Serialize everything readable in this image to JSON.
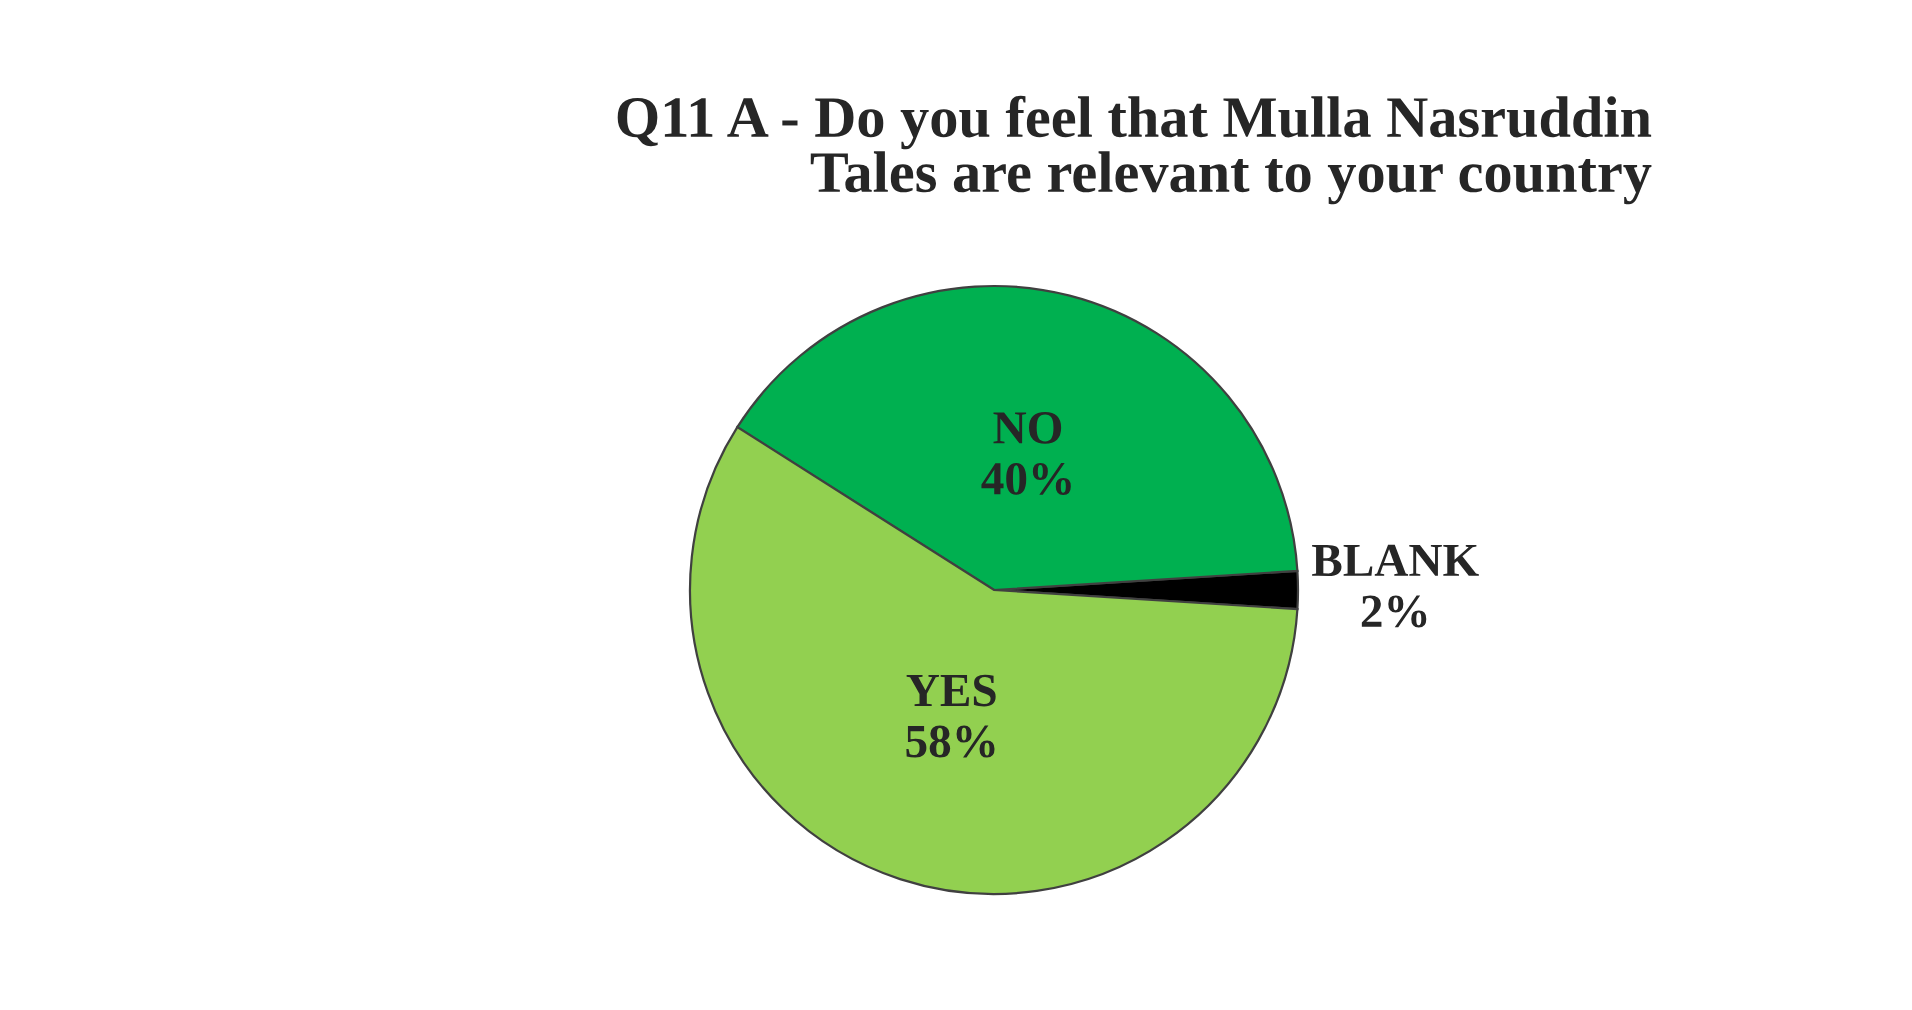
{
  "chart_data": {
    "type": "pie",
    "title": "Q11 A - Do you feel that Mulla Nasruddin\nTales are relevant to your country",
    "categories": [
      "BLANK",
      "NO",
      "YES"
    ],
    "values": [
      2,
      40,
      58
    ],
    "value_labels": [
      "2%",
      "40%",
      "58%"
    ],
    "colors": [
      "#000000",
      "#00b050",
      "#92d050"
    ],
    "legend": false
  }
}
